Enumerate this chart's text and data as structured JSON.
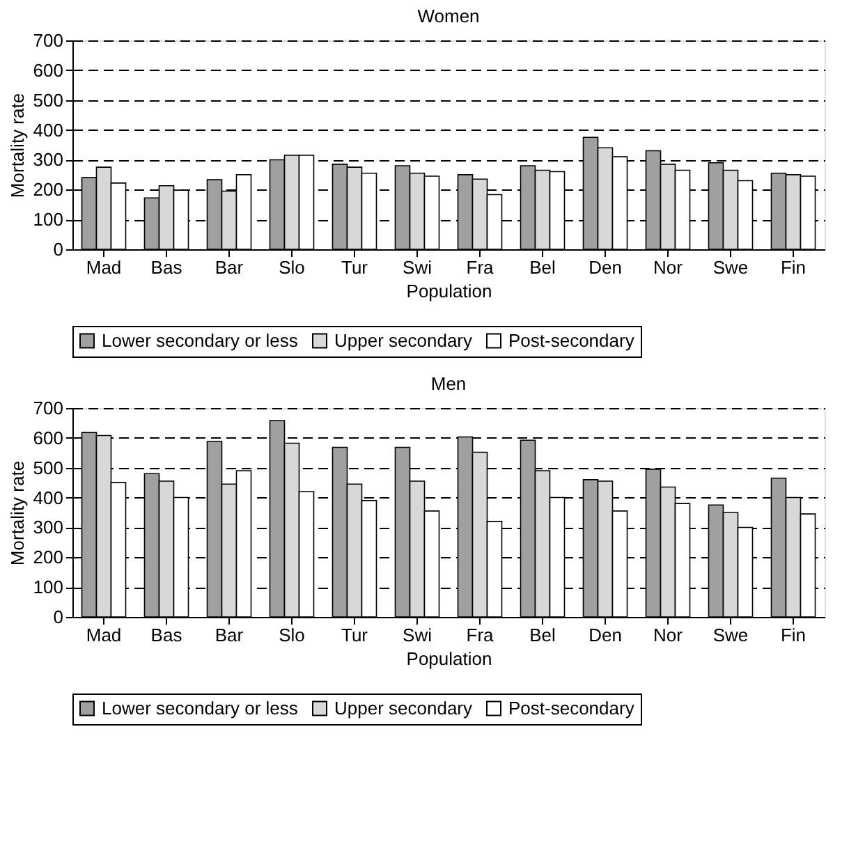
{
  "chart_data": [
    {
      "type": "bar",
      "title": "Women",
      "xlabel": "Population",
      "ylabel": "Mortality rate",
      "categories": [
        "Mad",
        "Bas",
        "Bar",
        "Slo",
        "Tur",
        "Swi",
        "Fra",
        "Bel",
        "Den",
        "Nor",
        "Swe",
        "Fin"
      ],
      "series": [
        {
          "name": "Lower secondary or less",
          "color": "#a0a0a0",
          "values": [
            240,
            172,
            233,
            300,
            285,
            280,
            250,
            280,
            375,
            330,
            290,
            255
          ]
        },
        {
          "name": "Upper secondary",
          "color": "#d8d8d8",
          "values": [
            275,
            213,
            195,
            315,
            275,
            255,
            235,
            265,
            340,
            285,
            265,
            250
          ]
        },
        {
          "name": "Post-secondary",
          "color": "#ffffff",
          "values": [
            222,
            198,
            250,
            315,
            255,
            245,
            183,
            260,
            310,
            265,
            230,
            245
          ]
        }
      ],
      "ylim": [
        0,
        700
      ],
      "yticks": [
        0,
        100,
        200,
        300,
        400,
        500,
        600,
        700
      ],
      "grid": "y",
      "legend": "bottom"
    },
    {
      "type": "bar",
      "title": "Men",
      "xlabel": "Population",
      "ylabel": "Mortality rate",
      "categories": [
        "Mad",
        "Bas",
        "Bar",
        "Slo",
        "Tur",
        "Swi",
        "Fra",
        "Bel",
        "Den",
        "Nor",
        "Swe",
        "Fin"
      ],
      "series": [
        {
          "name": "Lower secondary or less",
          "color": "#a0a0a0",
          "values": [
            618,
            480,
            588,
            658,
            568,
            568,
            603,
            592,
            460,
            495,
            375,
            465
          ]
        },
        {
          "name": "Upper secondary",
          "color": "#d8d8d8",
          "values": [
            608,
            455,
            445,
            582,
            445,
            455,
            552,
            490,
            455,
            435,
            350,
            400
          ]
        },
        {
          "name": "Post-secondary",
          "color": "#ffffff",
          "values": [
            450,
            400,
            490,
            420,
            390,
            355,
            320,
            400,
            355,
            380,
            300,
            345
          ]
        }
      ],
      "ylim": [
        0,
        700
      ],
      "yticks": [
        0,
        100,
        200,
        300,
        400,
        500,
        600,
        700
      ],
      "grid": "y",
      "legend": "bottom"
    }
  ]
}
